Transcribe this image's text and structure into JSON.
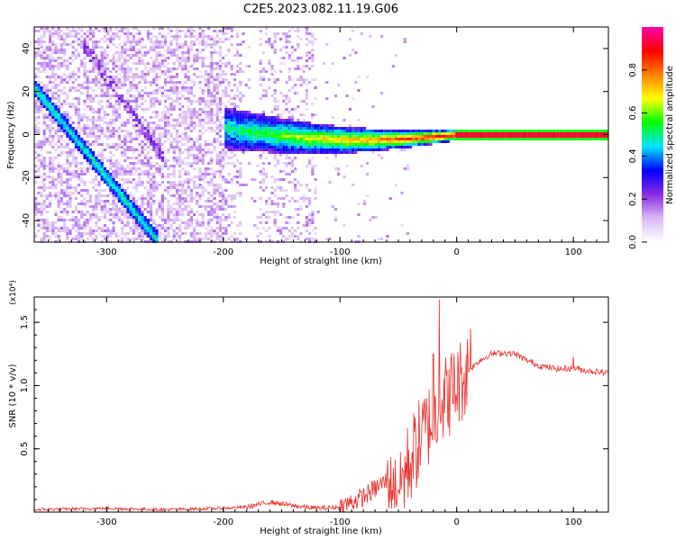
{
  "title": "C2E5.2023.082.11.19.G06",
  "chart_data": [
    {
      "type": "heatmap",
      "xlabel": "Height of straight line (km)",
      "ylabel": "Frequency (Hz)",
      "xlim": [
        -362,
        130
      ],
      "ylim": [
        -50,
        50
      ],
      "xticks": [
        -300,
        -200,
        -100,
        0,
        100
      ],
      "yticks": [
        -40,
        -20,
        0,
        20,
        40
      ],
      "colorbar": {
        "label": "Normalized spectral amplitude",
        "range": [
          0,
          1
        ],
        "ticks": [
          "0.0",
          "0.2",
          "0.4",
          "0.6",
          "0.8"
        ],
        "colormap": [
          "#ffffff",
          "#d9b8f5",
          "#8a2be2",
          "#0000ff",
          "#00e5ff",
          "#00ff00",
          "#ffff00",
          "#ff8000",
          "#ff0000",
          "#ff00aa"
        ]
      },
      "features": {
        "diagonal_track": {
          "from": [
            -362,
            22
          ],
          "to": [
            -255,
            -50
          ]
        },
        "secondary_track": {
          "from": [
            -320,
            42
          ],
          "to": [
            -250,
            -12
          ]
        },
        "converging_band": {
          "from_x": -200,
          "to_x": 5,
          "center_hz": 3,
          "end_hz": 0,
          "width_hz_start": 10
        },
        "steady_line": {
          "from_x": 0,
          "to_x": 130,
          "freq_hz": 0
        }
      }
    },
    {
      "type": "line",
      "xlabel": "Height of straight line (km)",
      "ylabel": "SNR (10 * v/v)",
      "y_multiplier": "(x10⁴)",
      "xlim": [
        -362,
        130
      ],
      "ylim": [
        0,
        1.7
      ],
      "xticks": [
        -300,
        -200,
        -100,
        0,
        100
      ],
      "yticks": [
        "0.5",
        "1.0",
        "1.5"
      ],
      "series": [
        {
          "color": "#e8302c",
          "x": [
            -362,
            -300,
            -250,
            -200,
            -180,
            -160,
            -140,
            -120,
            -100,
            -80,
            -60,
            -50,
            -40,
            -30,
            -20,
            -15,
            -10,
            0,
            10,
            20,
            30,
            40,
            50,
            60,
            70,
            80,
            90,
            100,
            110,
            120,
            130
          ],
          "y": [
            0.02,
            0.03,
            0.02,
            0.03,
            0.04,
            0.08,
            0.05,
            0.03,
            0.04,
            0.12,
            0.25,
            0.2,
            0.4,
            0.6,
            0.75,
            0.85,
            0.9,
            1.0,
            1.12,
            1.2,
            1.25,
            1.26,
            1.25,
            1.2,
            1.16,
            1.14,
            1.13,
            1.14,
            1.12,
            1.11,
            1.1
          ]
        }
      ],
      "spikes": [
        {
          "x": -15,
          "y": 1.68
        },
        {
          "x": 12,
          "y": 1.45
        },
        {
          "x": -20,
          "y": 1.25
        },
        {
          "x": 100,
          "y": 1.23
        }
      ]
    }
  ]
}
